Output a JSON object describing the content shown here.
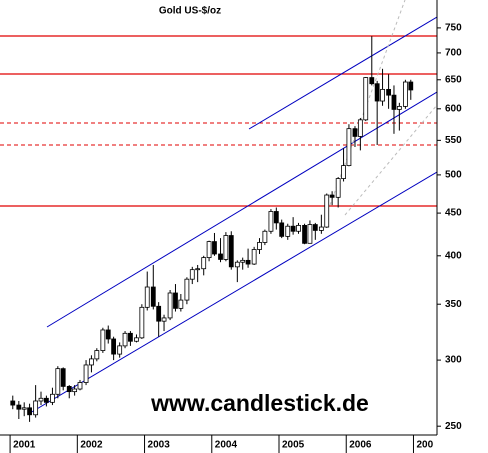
{
  "chart_data": {
    "type": "candlestick",
    "title": "Gold US-$/oz",
    "watermark": "www.candlestick.de",
    "log_scale": true,
    "up_color": "#ffffff",
    "down_color": "#000000",
    "outline_color": "#000000",
    "xlim": [
      2000.85,
      2007.35
    ],
    "xticks": [
      2001,
      2002,
      2003,
      2004,
      2005,
      2006,
      {
        "value": 2007,
        "label": "200"
      }
    ],
    "ylim": [
      244,
      810
    ],
    "yticks": [
      250,
      300,
      350,
      400,
      450,
      500,
      550,
      600,
      650,
      700,
      750
    ],
    "x": [
      2001.04,
      2001.13,
      2001.21,
      2001.29,
      2001.38,
      2001.46,
      2001.54,
      2001.63,
      2001.71,
      2001.79,
      2001.88,
      2001.96,
      2002.04,
      2002.13,
      2002.21,
      2002.29,
      2002.38,
      2002.46,
      2002.54,
      2002.63,
      2002.71,
      2002.79,
      2002.88,
      2002.96,
      2003.04,
      2003.13,
      2003.21,
      2003.29,
      2003.38,
      2003.46,
      2003.54,
      2003.63,
      2003.71,
      2003.79,
      2003.88,
      2003.96,
      2004.04,
      2004.13,
      2004.21,
      2004.29,
      2004.38,
      2004.46,
      2004.54,
      2004.63,
      2004.71,
      2004.79,
      2004.88,
      2004.96,
      2005.04,
      2005.13,
      2005.21,
      2005.29,
      2005.38,
      2005.46,
      2005.54,
      2005.63,
      2005.71,
      2005.79,
      2005.88,
      2005.96,
      2006.04,
      2006.13,
      2006.21,
      2006.29,
      2006.38,
      2006.46,
      2006.54,
      2006.63,
      2006.71,
      2006.79,
      2006.88,
      2006.96
    ],
    "open": [
      268,
      265,
      262,
      263,
      258,
      268,
      270,
      267,
      273,
      293,
      279,
      275,
      277,
      282,
      296,
      301,
      308,
      326,
      318,
      305,
      312,
      323,
      316,
      319,
      347,
      367,
      348,
      334,
      337,
      361,
      346,
      354,
      375,
      385,
      386,
      398,
      416,
      402,
      396,
      423,
      388,
      393,
      395,
      391,
      407,
      415,
      428,
      452,
      438,
      422,
      434,
      428,
      435,
      414,
      436,
      429,
      433,
      473,
      470,
      495,
      513,
      568,
      556,
      582,
      654,
      643,
      613,
      633,
      623,
      599,
      604,
      646
    ],
    "high": [
      272,
      268,
      267,
      266,
      280,
      275,
      272,
      278,
      295,
      294,
      280,
      280,
      284,
      300,
      304,
      310,
      328,
      330,
      320,
      315,
      325,
      325,
      322,
      350,
      383,
      390,
      352,
      340,
      364,
      370,
      360,
      377,
      388,
      390,
      400,
      417,
      426,
      420,
      427,
      428,
      395,
      398,
      408,
      410,
      420,
      430,
      455,
      457,
      442,
      437,
      445,
      438,
      437,
      441,
      438,
      448,
      475,
      478,
      497,
      538,
      575,
      572,
      585,
      655,
      733,
      648,
      670,
      660,
      640,
      610,
      650,
      650
    ],
    "low": [
      262,
      255,
      257,
      253,
      256,
      265,
      264,
      265,
      270,
      276,
      270,
      272,
      276,
      280,
      290,
      299,
      306,
      314,
      300,
      302,
      310,
      312,
      315,
      318,
      344,
      345,
      320,
      325,
      335,
      343,
      343,
      350,
      370,
      372,
      379,
      394,
      400,
      393,
      394,
      385,
      372,
      385,
      387,
      390,
      402,
      412,
      425,
      430,
      420,
      418,
      424,
      425,
      413,
      414,
      418,
      425,
      432,
      460,
      457,
      491,
      512,
      540,
      535,
      580,
      640,
      543,
      605,
      600,
      560,
      565,
      600,
      615
    ],
    "close": [
      265,
      262,
      263,
      258,
      268,
      270,
      267,
      273,
      293,
      279,
      275,
      277,
      282,
      296,
      301,
      308,
      326,
      318,
      305,
      312,
      323,
      316,
      319,
      347,
      367,
      348,
      334,
      337,
      361,
      346,
      354,
      375,
      385,
      386,
      398,
      416,
      402,
      396,
      423,
      388,
      393,
      395,
      391,
      407,
      415,
      428,
      452,
      438,
      422,
      434,
      428,
      435,
      414,
      436,
      429,
      433,
      473,
      470,
      495,
      513,
      568,
      556,
      582,
      654,
      643,
      613,
      633,
      623,
      599,
      604,
      646,
      632
    ]
  }
}
